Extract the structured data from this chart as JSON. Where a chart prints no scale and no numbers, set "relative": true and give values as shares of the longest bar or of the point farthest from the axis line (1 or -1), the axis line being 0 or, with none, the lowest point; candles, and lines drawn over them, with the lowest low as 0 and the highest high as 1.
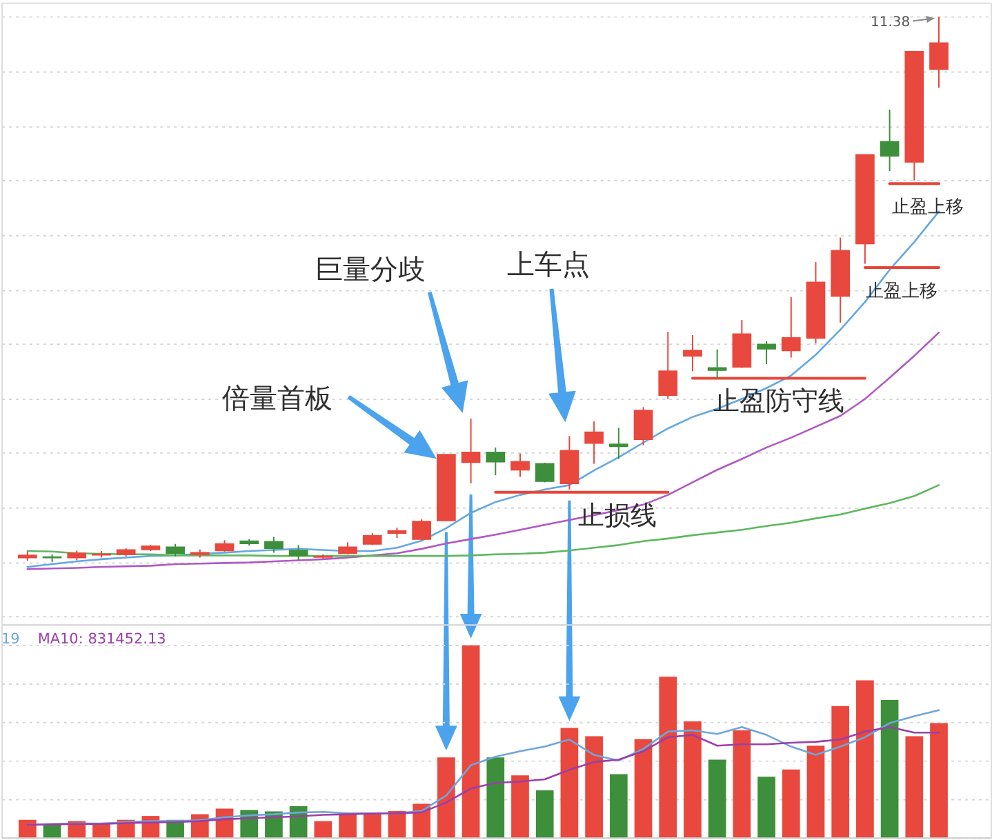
{
  "chart_data": [
    {
      "type": "candlestick",
      "relative": true,
      "grid": "y",
      "tick_labels": false,
      "categories": [
        null,
        null,
        null,
        null,
        null,
        null,
        null,
        null,
        null,
        null,
        null,
        null,
        null,
        null,
        null,
        null,
        null,
        null,
        null,
        null,
        null,
        null,
        null,
        null,
        null,
        null,
        null,
        null,
        null,
        null,
        null,
        null,
        null,
        null,
        null,
        null,
        null,
        null
      ],
      "ohlc": [
        [
          0.008,
          0.019,
          0.002,
          0.012
        ],
        [
          0.009,
          0.014,
          0,
          0.008
        ],
        [
          0.008,
          0.021,
          0.003,
          0.016
        ],
        [
          0.013,
          0.02,
          0.008,
          0.014
        ],
        [
          0.014,
          0.025,
          0.01,
          0.022
        ],
        [
          0.023,
          0.031,
          0.02,
          0.029
        ],
        [
          0.027,
          0.033,
          0.01,
          0.016
        ],
        [
          0.014,
          0.023,
          0.008,
          0.017
        ],
        [
          0.021,
          0.04,
          0.019,
          0.033
        ],
        [
          0.038,
          0.042,
          0.03,
          0.034
        ],
        [
          0.037,
          0.046,
          0.017,
          0.025
        ],
        [
          0.021,
          0.031,
          0.003,
          0.012
        ],
        [
          0.009,
          0.014,
          0.006,
          0.01
        ],
        [
          0.016,
          0.036,
          0.014,
          0.027
        ],
        [
          0.033,
          0.053,
          0.031,
          0.048
        ],
        [
          0.053,
          0.063,
          0.044,
          0.057
        ],
        [
          0.042,
          0.078,
          0.04,
          0.074
        ],
        [
          0.076,
          0.197,
          0.075,
          0.197
        ],
        [
          0.183,
          0.263,
          0.144,
          0.201
        ],
        [
          0.201,
          0.21,
          0.159,
          0.184
        ],
        [
          0.169,
          0.199,
          0.156,
          0.184
        ],
        [
          0.18,
          0.182,
          0.146,
          0.148
        ],
        [
          0.144,
          0.231,
          0.133,
          0.204
        ],
        [
          0.218,
          0.258,
          0.18,
          0.238
        ],
        [
          0.216,
          0.246,
          0.189,
          0.212
        ],
        [
          0.225,
          0.284,
          0.214,
          0.278
        ],
        [
          0.306,
          0.422,
          0.299,
          0.35
        ],
        [
          0.378,
          0.416,
          0.35,
          0.388
        ],
        [
          0.356,
          0.39,
          0.337,
          0.352
        ],
        [
          0.358,
          0.444,
          0.356,
          0.418
        ],
        [
          0.399,
          0.405,
          0.363,
          0.391
        ],
        [
          0.388,
          0.486,
          0.375,
          0.411
        ],
        [
          0.411,
          0.55,
          0.401,
          0.513
        ],
        [
          0.488,
          0.595,
          0.439,
          0.571
        ],
        [
          0.584,
          0.747,
          0.547,
          0.747
        ],
        [
          0.771,
          0.83,
          0.717,
          0.745
        ],
        [
          0.734,
          0.936,
          0.7,
          0.936
        ],
        [
          0.904,
          1,
          0.87,
          0.952
        ]
      ],
      "colors": [
        "#e8483d",
        "#3e8f3b",
        "#e8483d",
        "#e8483d",
        "#e8483d",
        "#e8483d",
        "#3e8f3b",
        "#e8483d",
        "#e8483d",
        "#3e8f3b",
        "#3e8f3b",
        "#3e8f3b",
        "#e8483d",
        "#e8483d",
        "#e8483d",
        "#e8483d",
        "#e8483d",
        "#e8483d",
        "#e8483d",
        "#3e8f3b",
        "#e8483d",
        "#3e8f3b",
        "#e8483d",
        "#e8483d",
        "#3e8f3b",
        "#e8483d",
        "#e8483d",
        "#e8483d",
        "#3e8f3b",
        "#e8483d",
        "#3e8f3b",
        "#e8483d",
        "#e8483d",
        "#e8483d",
        "#e8483d",
        "#3e8f3b",
        "#e8483d",
        "#e8483d"
      ],
      "series": [
        {
          "type": "line",
          "color": "#62a8e4",
          "values": [
            -0.009,
            -0.004,
            0.001,
            0.005,
            0.008,
            0.011,
            0.012,
            0.015,
            0.017,
            0.02,
            0.022,
            0.024,
            0.022,
            0.02,
            0.02,
            0.026,
            0.039,
            0.062,
            0.09,
            0.11,
            0.123,
            0.133,
            0.141,
            0.168,
            0.192,
            0.219,
            0.245,
            0.266,
            0.281,
            0.299,
            0.319,
            0.342,
            0.38,
            0.426,
            0.477,
            0.536,
            0.587,
            0.643
          ]
        },
        {
          "type": "line",
          "color": "#b058c4",
          "values": [
            -0.013,
            -0.012,
            -0.011,
            -0.009,
            -0.008,
            -0.007,
            -0.004,
            -0.003,
            -0.002,
            -0.001,
            0.001,
            0.003,
            0.005,
            0.008,
            0.012,
            0.016,
            0.024,
            0.034,
            0.042,
            0.05,
            0.059,
            0.068,
            0.077,
            0.086,
            0.095,
            0.105,
            0.123,
            0.146,
            0.169,
            0.189,
            0.21,
            0.228,
            0.248,
            0.268,
            0.299,
            0.338,
            0.378,
            0.421
          ]
        },
        {
          "type": "line",
          "color": "#5cb85c",
          "values": [
            0.02,
            0.019,
            0.016,
            0.015,
            0.014,
            0.014,
            0.012,
            0.012,
            0.012,
            0.012,
            0.011,
            0.011,
            0.011,
            0.011,
            0.011,
            0.011,
            0.011,
            0.011,
            0.012,
            0.014,
            0.015,
            0.017,
            0.021,
            0.026,
            0.031,
            0.038,
            0.043,
            0.049,
            0.054,
            0.059,
            0.066,
            0.072,
            0.08,
            0.087,
            0.098,
            0.108,
            0.121,
            0.141
          ]
        },
        {
          "type": "line",
          "name": "止损线",
          "color": "#e5463b",
          "values": [
            null,
            null,
            null,
            null,
            null,
            null,
            null,
            null,
            null,
            null,
            null,
            null,
            null,
            null,
            null,
            null,
            null,
            null,
            null,
            0.128,
            0.128,
            0.128,
            0.128,
            0.128,
            0.128,
            0.128,
            0.128,
            null,
            null,
            null,
            null,
            null,
            null,
            null,
            null,
            null,
            null,
            null
          ]
        },
        {
          "type": "line",
          "name": "止盈防守线",
          "color": "#e5463b",
          "values": [
            null,
            null,
            null,
            null,
            null,
            null,
            null,
            null,
            null,
            null,
            null,
            null,
            null,
            null,
            null,
            null,
            null,
            null,
            null,
            null,
            null,
            null,
            null,
            null,
            null,
            null,
            null,
            0.337,
            0.337,
            0.337,
            0.337,
            0.337,
            0.337,
            0.337,
            0.337,
            null,
            null,
            null
          ]
        },
        {
          "type": "line",
          "name": "止盈上移",
          "color": "#e5463b",
          "values": [
            null,
            null,
            null,
            null,
            null,
            null,
            null,
            null,
            null,
            null,
            null,
            null,
            null,
            null,
            null,
            null,
            null,
            null,
            null,
            null,
            null,
            null,
            null,
            null,
            null,
            null,
            null,
            null,
            null,
            null,
            null,
            null,
            null,
            null,
            0.54,
            0.54,
            0.54,
            0.54
          ]
        },
        {
          "type": "line",
          "name": "止盈上移",
          "color": "#e5463b",
          "values": [
            null,
            null,
            null,
            null,
            null,
            null,
            null,
            null,
            null,
            null,
            null,
            null,
            null,
            null,
            null,
            null,
            null,
            null,
            null,
            null,
            null,
            null,
            null,
            null,
            null,
            null,
            null,
            null,
            null,
            null,
            null,
            null,
            null,
            null,
            null,
            0.694,
            0.694,
            0.694
          ]
        }
      ],
      "annotations": [
        "11.38",
        "倍量首板",
        "巨量分歧",
        "上车点"
      ]
    },
    {
      "type": "bar",
      "relative": true,
      "grid": "y",
      "tick_labels": false,
      "categories": [
        null,
        null,
        null,
        null,
        null,
        null,
        null,
        null,
        null,
        null,
        null,
        null,
        null,
        null,
        null,
        null,
        null,
        null,
        null,
        null,
        null,
        null,
        null,
        null,
        null,
        null,
        null,
        null,
        null,
        null,
        null,
        null,
        null,
        null,
        null,
        null,
        null,
        null
      ],
      "series": [
        {
          "type": "bar",
          "colors": [
            "#e8483d",
            "#3e8f3b",
            "#e8483d",
            "#e8483d",
            "#e8483d",
            "#e8483d",
            "#3e8f3b",
            "#e8483d",
            "#e8483d",
            "#3e8f3b",
            "#3e8f3b",
            "#3e8f3b",
            "#e8483d",
            "#e8483d",
            "#e8483d",
            "#e8483d",
            "#e8483d",
            "#e8483d",
            "#e8483d",
            "#3e8f3b",
            "#e8483d",
            "#3e8f3b",
            "#e8483d",
            "#e8483d",
            "#3e8f3b",
            "#e8483d",
            "#e8483d",
            "#e8483d",
            "#3e8f3b",
            "#e8483d",
            "#3e8f3b",
            "#e8483d",
            "#e8483d",
            "#e8483d",
            "#e8483d",
            "#3e8f3b",
            "#e8483d",
            "#e8483d"
          ],
          "values": [
            0.092,
            0.066,
            0.085,
            0.07,
            0.092,
            0.112,
            0.092,
            0.121,
            0.15,
            0.143,
            0.136,
            0.163,
            0.085,
            0.126,
            0.126,
            0.138,
            0.175,
            0.417,
            1,
            0.417,
            0.323,
            0.245,
            0.57,
            0.527,
            0.33,
            0.512,
            0.837,
            0.604,
            0.405,
            0.558,
            0.316,
            0.354,
            0.478,
            0.684,
            0.818,
            0.716,
            0.527,
            0.595
          ]
        },
        {
          "type": "line",
          "color": "#6fa6dc",
          "values": [
            0.066,
            0.07,
            0.073,
            0.073,
            0.08,
            0.085,
            0.085,
            0.09,
            0.105,
            0.115,
            0.121,
            0.13,
            0.133,
            0.126,
            0.126,
            0.126,
            0.138,
            0.218,
            0.376,
            0.42,
            0.449,
            0.473,
            0.51,
            0.43,
            0.4,
            0.461,
            0.551,
            0.558,
            0.539,
            0.575,
            0.534,
            0.473,
            0.43,
            0.473,
            0.522,
            0.595,
            0.631,
            0.663
          ]
        },
        {
          "type": "line",
          "color": "#9a3fa8",
          "values": [
            0.066,
            0.068,
            0.07,
            0.07,
            0.075,
            0.078,
            0.08,
            0.085,
            0.095,
            0.1,
            0.105,
            0.11,
            0.118,
            0.121,
            0.124,
            0.126,
            0.131,
            0.182,
            0.255,
            0.284,
            0.291,
            0.303,
            0.352,
            0.393,
            0.405,
            0.449,
            0.522,
            0.534,
            0.478,
            0.485,
            0.485,
            0.493,
            0.498,
            0.51,
            0.551,
            0.575,
            0.546,
            0.546
          ]
        }
      ],
      "annotations": [
        "19",
        "MA10: 831452.13"
      ]
    }
  ]
}
